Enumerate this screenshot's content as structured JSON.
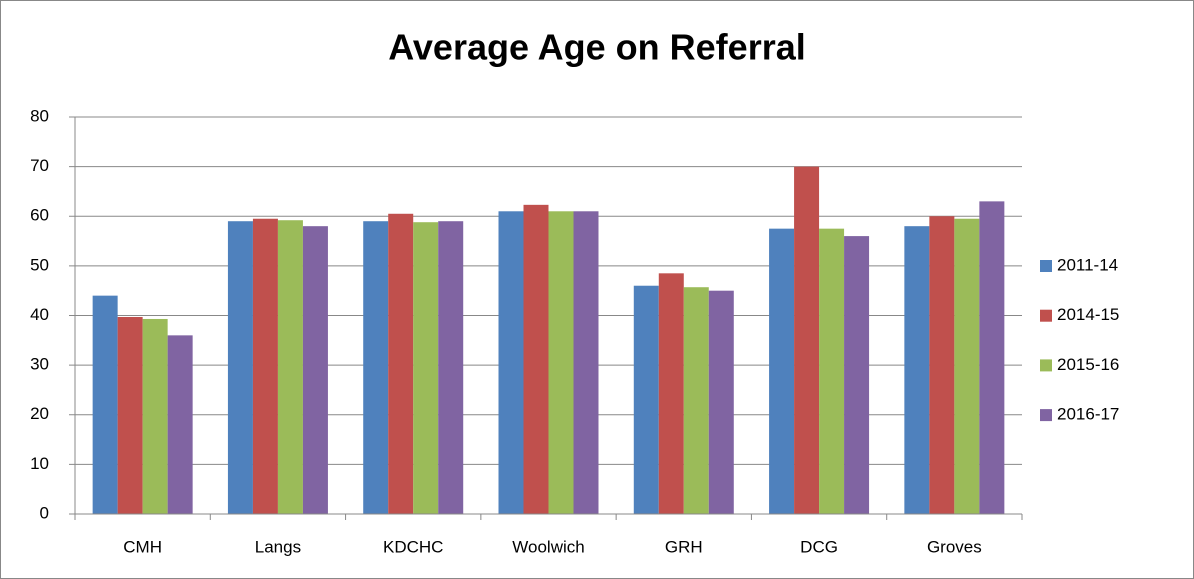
{
  "chart_data": {
    "type": "bar",
    "title": "Average Age on Referral",
    "categories": [
      "CMH",
      "Langs",
      "KDCHC",
      "Woolwich",
      "GRH",
      "DCG",
      "Groves"
    ],
    "series": [
      {
        "name": "2011-14",
        "color": "#4f81bd",
        "values": [
          44,
          59,
          59,
          61,
          46,
          57.5,
          58
        ]
      },
      {
        "name": "2014-15",
        "color": "#c0504d",
        "values": [
          39.7,
          59.5,
          60.5,
          62.3,
          48.5,
          70,
          60
        ]
      },
      {
        "name": "2015-16",
        "color": "#9bbb59",
        "values": [
          39.3,
          59.2,
          58.8,
          61,
          45.7,
          57.5,
          59.5
        ]
      },
      {
        "name": "2016-17",
        "color": "#8064a2",
        "values": [
          36,
          58,
          59,
          61,
          45,
          56,
          63
        ]
      }
    ],
    "ylim": [
      0,
      80
    ],
    "yticks": [
      0,
      10,
      20,
      30,
      40,
      50,
      60,
      70,
      80
    ],
    "grid": true,
    "legend": "right"
  }
}
